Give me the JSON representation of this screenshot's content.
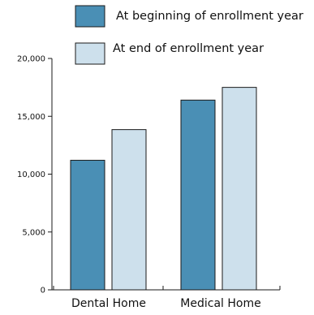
{
  "chart_data": {
    "type": "bar",
    "categories": [
      "Dental Home",
      "Medical Home"
    ],
    "series": [
      {
        "name": "At beginning of enrollment year",
        "color": "#4a8fb5",
        "values": [
          11200,
          16400
        ]
      },
      {
        "name": "At end of enrollment year",
        "color": "#cde0ec",
        "values": [
          13850,
          17500
        ]
      }
    ],
    "yticks": [
      "0",
      "5,000",
      "10,000",
      "15,000",
      "20,000"
    ],
    "ylim": [
      0,
      20000
    ],
    "xlabel": "",
    "ylabel": "",
    "grid": false,
    "legend_position": "top-right",
    "edge_color": "#1a1a1a"
  }
}
